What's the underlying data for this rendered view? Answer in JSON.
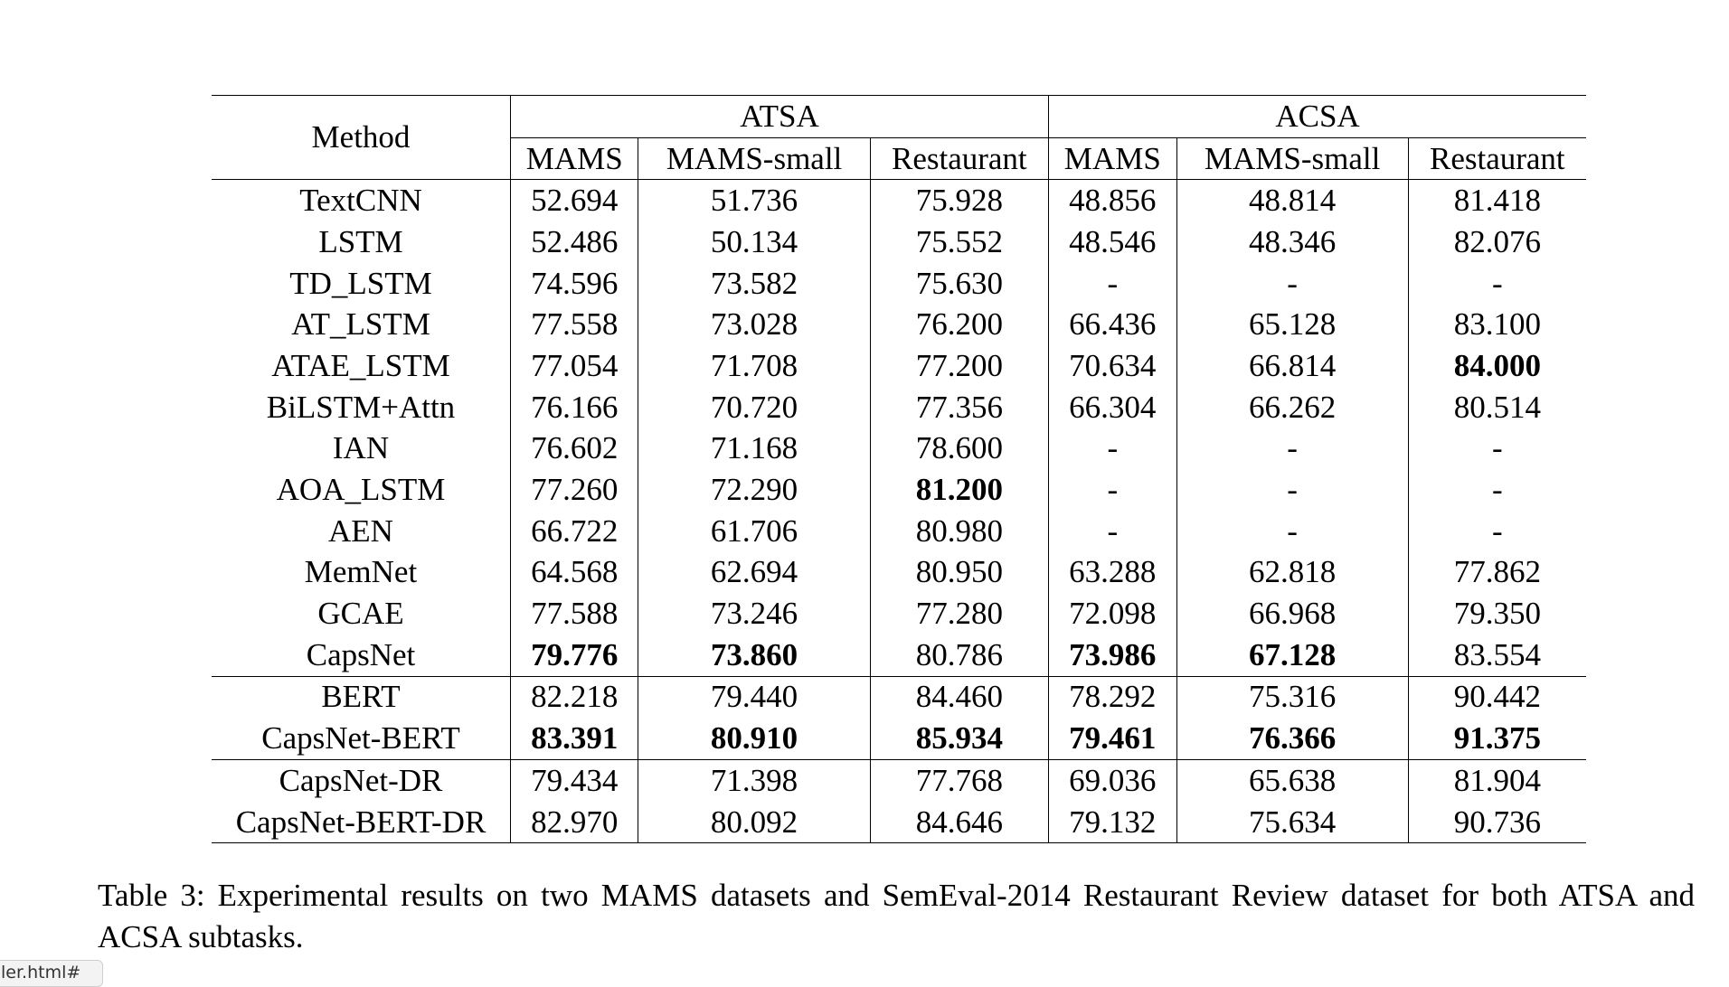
{
  "table": {
    "header": {
      "method": "Method",
      "groups": [
        "ATSA",
        "ACSA"
      ],
      "columns": [
        "MAMS",
        "MAMS-small",
        "Restaurant",
        "MAMS",
        "MAMS-small",
        "Restaurant"
      ]
    },
    "row_groups": [
      {
        "rows": [
          {
            "method": "TextCNN",
            "values": [
              "52.694",
              "51.736",
              "75.928",
              "48.856",
              "48.814",
              "81.418"
            ],
            "bold": []
          },
          {
            "method": "LSTM",
            "values": [
              "52.486",
              "50.134",
              "75.552",
              "48.546",
              "48.346",
              "82.076"
            ],
            "bold": []
          },
          {
            "method": "TD_LSTM",
            "values": [
              "74.596",
              "73.582",
              "75.630",
              "-",
              "-",
              "-"
            ],
            "bold": []
          },
          {
            "method": "AT_LSTM",
            "values": [
              "77.558",
              "73.028",
              "76.200",
              "66.436",
              "65.128",
              "83.100"
            ],
            "bold": []
          },
          {
            "method": "ATAE_LSTM",
            "values": [
              "77.054",
              "71.708",
              "77.200",
              "70.634",
              "66.814",
              "84.000"
            ],
            "bold": [
              5
            ]
          },
          {
            "method": "BiLSTM+Attn",
            "values": [
              "76.166",
              "70.720",
              "77.356",
              "66.304",
              "66.262",
              "80.514"
            ],
            "bold": []
          },
          {
            "method": "IAN",
            "values": [
              "76.602",
              "71.168",
              "78.600",
              "-",
              "-",
              "-"
            ],
            "bold": []
          },
          {
            "method": "AOA_LSTM",
            "values": [
              "77.260",
              "72.290",
              "81.200",
              "-",
              "-",
              "-"
            ],
            "bold": [
              2
            ]
          },
          {
            "method": "AEN",
            "values": [
              "66.722",
              "61.706",
              "80.980",
              "-",
              "-",
              "-"
            ],
            "bold": []
          },
          {
            "method": "MemNet",
            "values": [
              "64.568",
              "62.694",
              "80.950",
              "63.288",
              "62.818",
              "77.862"
            ],
            "bold": []
          },
          {
            "method": "GCAE",
            "values": [
              "77.588",
              "73.246",
              "77.280",
              "72.098",
              "66.968",
              "79.350"
            ],
            "bold": []
          },
          {
            "method": "CapsNet",
            "values": [
              "79.776",
              "73.860",
              "80.786",
              "73.986",
              "67.128",
              "83.554"
            ],
            "bold": [
              0,
              1,
              3,
              4
            ]
          }
        ]
      },
      {
        "rows": [
          {
            "method": "BERT",
            "values": [
              "82.218",
              "79.440",
              "84.460",
              "78.292",
              "75.316",
              "90.442"
            ],
            "bold": []
          },
          {
            "method": "CapsNet-BERT",
            "values": [
              "83.391",
              "80.910",
              "85.934",
              "79.461",
              "76.366",
              "91.375"
            ],
            "bold": [
              0,
              1,
              2,
              3,
              4,
              5
            ]
          }
        ]
      },
      {
        "rows": [
          {
            "method": "CapsNet-DR",
            "values": [
              "79.434",
              "71.398",
              "77.768",
              "69.036",
              "65.638",
              "81.904"
            ],
            "bold": []
          },
          {
            "method": "CapsNet-BERT-DR",
            "values": [
              "82.970",
              "80.092",
              "84.646",
              "79.132",
              "75.634",
              "90.736"
            ],
            "bold": []
          }
        ]
      }
    ]
  },
  "caption": {
    "label": "Table 3:",
    "text": "Experimental results on two MAMS datasets and SemEval-2014 Restaurant Review dataset for both ATSA and ACSA subtasks."
  },
  "status_tab": {
    "text": "ler.html#"
  }
}
